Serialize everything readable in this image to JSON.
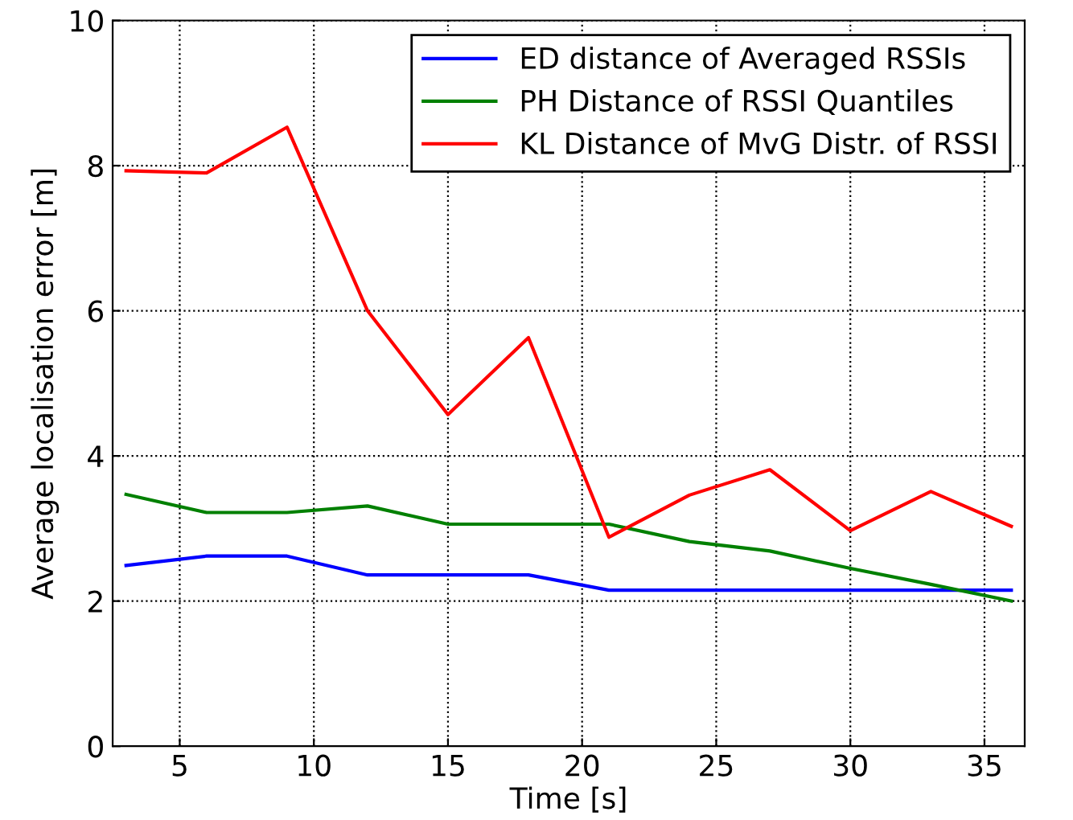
{
  "chart_data": {
    "type": "line",
    "xlabel": "Time [s]",
    "ylabel": "Average localisation error [m]",
    "x": [
      3,
      6,
      9,
      12,
      15,
      18,
      21,
      24,
      27,
      30,
      33,
      36
    ],
    "series": [
      {
        "name": "ED distance of Averaged RSSIs",
        "color": "#0000ff",
        "values": [
          2.49,
          2.62,
          2.62,
          2.36,
          2.36,
          2.36,
          2.15,
          2.15,
          2.15,
          2.15,
          2.15,
          2.15
        ]
      },
      {
        "name": "PH Distance of RSSI Quantiles",
        "color": "#008000",
        "values": [
          3.47,
          3.22,
          3.22,
          3.31,
          3.06,
          3.06,
          3.06,
          2.82,
          2.69,
          2.45,
          2.23,
          2.0
        ]
      },
      {
        "name": "KL Distance of MvG Distr. of RSSI",
        "color": "#ff0000",
        "values": [
          7.93,
          7.9,
          8.53,
          6.0,
          4.57,
          5.63,
          2.88,
          3.46,
          3.81,
          2.97,
          3.51,
          3.03
        ]
      }
    ],
    "xlim": [
      2.5,
      36.5
    ],
    "xticks": [
      5,
      10,
      15,
      20,
      25,
      30,
      35
    ],
    "ylim": [
      0,
      10
    ],
    "yticks": [
      0,
      2,
      4,
      6,
      8,
      10
    ],
    "grid": true,
    "legend": "top right",
    "marker": "none",
    "line_style": "solid"
  }
}
